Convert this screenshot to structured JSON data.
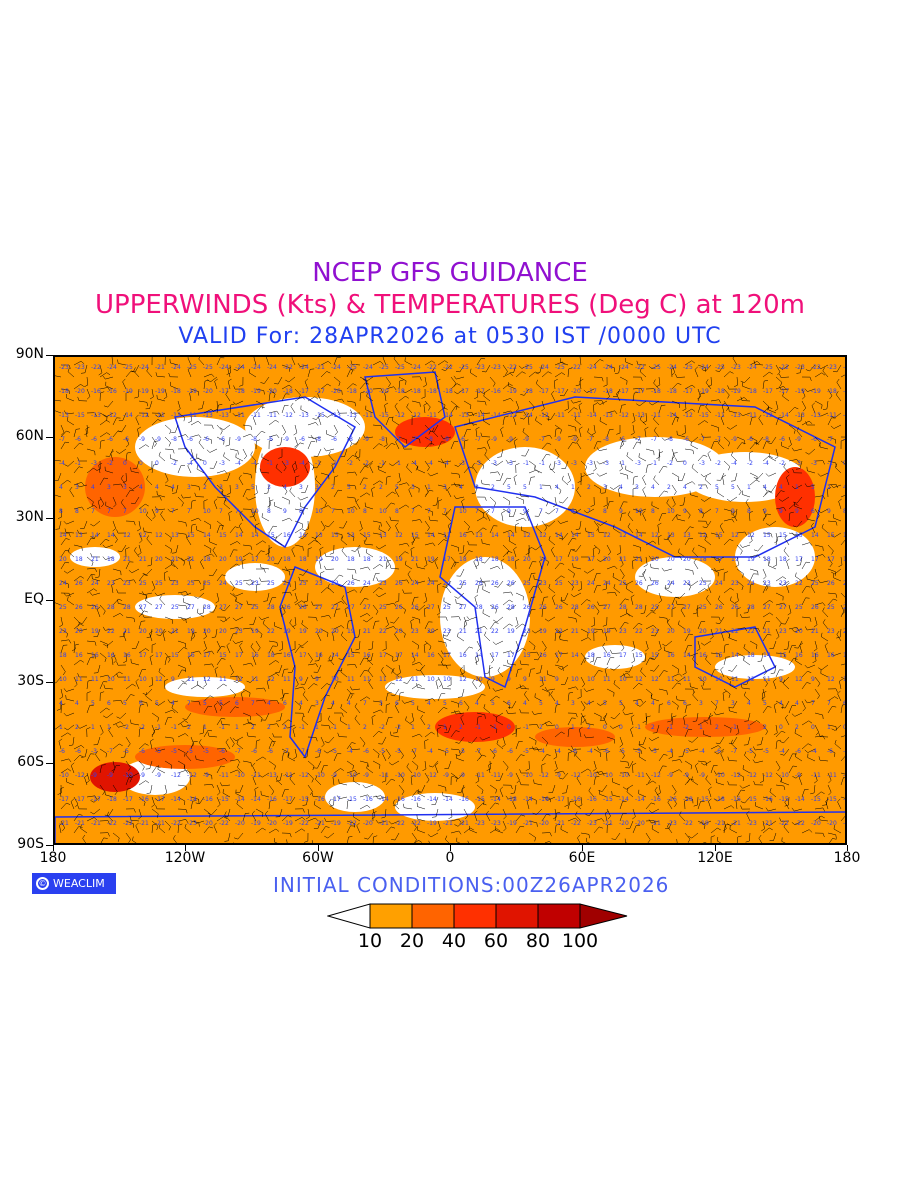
{
  "title": {
    "line1": "NCEP GFS GUIDANCE",
    "line2": "UPPERWINDS (Kts) & TEMPERATURES (Deg C) at 120m",
    "line3": "VALID For: 28APR2026 at 0530 IST /0000 UTC"
  },
  "axes": {
    "y_labels": [
      "90N",
      "60N",
      "30N",
      "EQ",
      "30S",
      "60S",
      "90S"
    ],
    "x_labels": [
      "180",
      "120W",
      "60W",
      "0",
      "60E",
      "120E",
      "180"
    ]
  },
  "logo": {
    "text": "WEACLIM",
    "symbol": "©"
  },
  "initial_conditions": "INITIAL CONDITIONS:00Z26APR2026",
  "colorbar": {
    "labels": [
      "10",
      "20",
      "40",
      "60",
      "80",
      "100"
    ],
    "colors": [
      "#ffffff",
      "#ffa000",
      "#ff6400",
      "#ff3000",
      "#e01400",
      "#c00000",
      "#a00000"
    ]
  },
  "colors": {
    "land_outline": "#2030f0",
    "temperature_text": "#3040f0",
    "barbs": "#000000"
  }
}
